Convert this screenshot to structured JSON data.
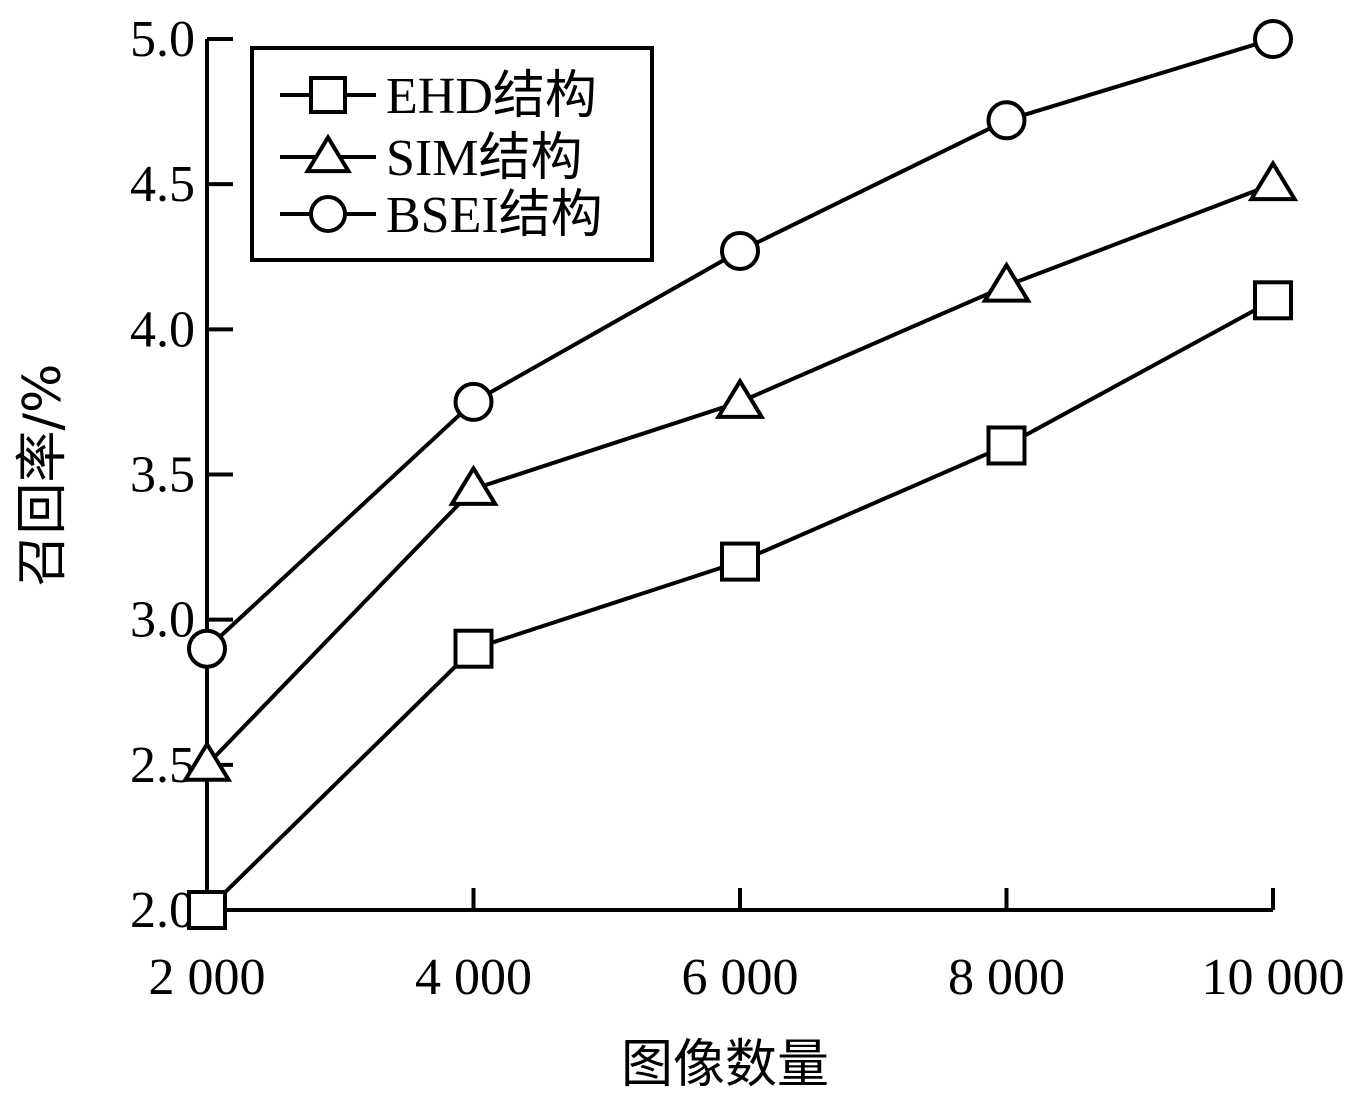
{
  "chart_data": {
    "type": "line",
    "xlabel": "图像数量",
    "ylabel": "召回率/%",
    "x": [
      2000,
      4000,
      6000,
      8000,
      10000
    ],
    "x_tick_labels": [
      "2 000",
      "4 000",
      "6 000",
      "8 000",
      "10 000"
    ],
    "y_tick_labels": [
      "2.0",
      "2.5",
      "3.0",
      "3.5",
      "4.0",
      "4.5",
      "5.0"
    ],
    "y_ticks": [
      2.0,
      2.5,
      3.0,
      3.5,
      4.0,
      4.5,
      5.0
    ],
    "xlim": [
      2000,
      10000
    ],
    "ylim": [
      2.0,
      5.0
    ],
    "grid": false,
    "legend_position": "top-left",
    "series": [
      {
        "name": "EHD结构",
        "marker": "square",
        "values": [
          2.0,
          2.9,
          3.2,
          3.6,
          4.1
        ]
      },
      {
        "name": "SIM结构",
        "marker": "triangle",
        "values": [
          2.5,
          3.45,
          3.75,
          4.15,
          4.5
        ]
      },
      {
        "name": "BSEI结构",
        "marker": "circle",
        "values": [
          2.9,
          3.75,
          4.27,
          4.72,
          5.0
        ]
      }
    ],
    "colors": {
      "line": "#000000",
      "background": "#ffffff"
    }
  }
}
